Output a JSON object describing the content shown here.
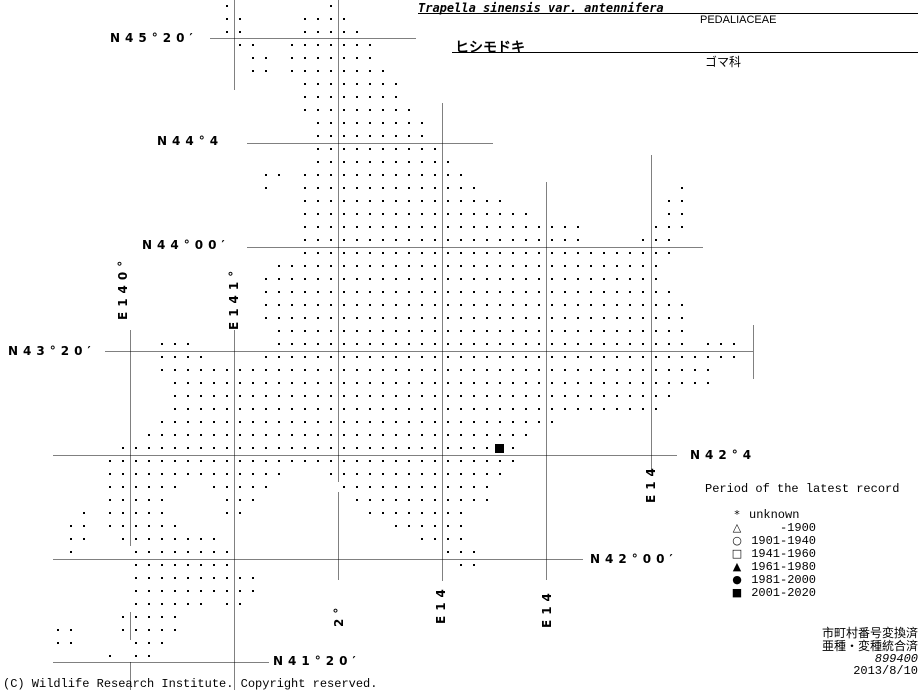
{
  "header": {
    "scientific_name": "Trapella sinensis var. antennifera",
    "family_latin": "PEDALIACEAE",
    "japanese_name": "ヒシモドキ",
    "family_japanese": "ゴマ科"
  },
  "grid_labels": {
    "lat": [
      "N45°20′",
      "N44°4",
      "N44°00′",
      "N43°20′",
      "N42°4",
      "N42°00′",
      "N41°20′"
    ],
    "lon": [
      "E140°",
      "E141°",
      "E14",
      "E14",
      "E14",
      "2°"
    ]
  },
  "legend": {
    "title": "Period of the latest record",
    "items": [
      {
        "icon": "asterisk",
        "symbol": "*",
        "label": "unknown"
      },
      {
        "icon": "open-triangle",
        "symbol": "△",
        "label": "-1900"
      },
      {
        "icon": "open-circle",
        "symbol": "○",
        "label": "1901-1940"
      },
      {
        "icon": "open-square",
        "symbol": "□",
        "label": "1941-1960"
      },
      {
        "icon": "filled-triangle",
        "symbol": "▲",
        "label": "1961-1980"
      },
      {
        "icon": "filled-circle",
        "symbol": "●",
        "label": "1981-2000"
      },
      {
        "icon": "filled-square",
        "symbol": "■",
        "label": "2001-2020"
      }
    ]
  },
  "records": [
    {
      "period": "2001-2020",
      "icon": "filled-square"
    }
  ],
  "footer": {
    "note1": "市町村番号変換済",
    "note2": "亜種・変種統合済",
    "code": "899400",
    "date": "2013/8/10",
    "copyright": "(C) Wildlife Research Institute. Copyright reserved."
  },
  "colors": {
    "ink": "#000000",
    "background": "#ffffff"
  }
}
